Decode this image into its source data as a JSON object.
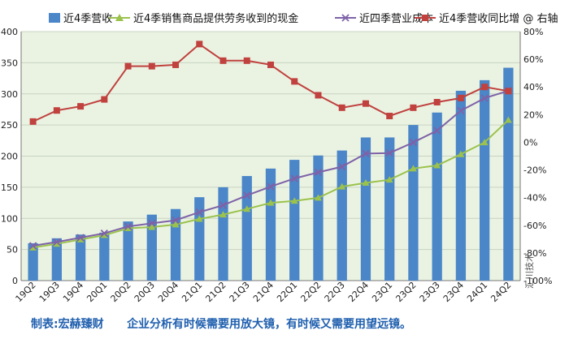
{
  "chart_data": {
    "type": "bar",
    "categories": [
      "19Q2",
      "19Q3",
      "19Q4",
      "20Q1",
      "20Q2",
      "20Q3",
      "20Q4",
      "21Q1",
      "21Q2",
      "21Q3",
      "21Q4",
      "22Q1",
      "22Q2",
      "22Q3",
      "22Q4",
      "23Q1",
      "23Q2",
      "23Q3",
      "23Q4",
      "24Q1",
      "24Q2"
    ],
    "series": [
      {
        "name": "近4季营收",
        "kind": "bar",
        "axis": "left",
        "color": "#4A86C8",
        "values": [
          60,
          68,
          74,
          77,
          95,
          106,
          115,
          134,
          150,
          168,
          180,
          194,
          201,
          209,
          230,
          230,
          250,
          270,
          305,
          322,
          342
        ]
      },
      {
        "name": "近4季销售商品提供劳务收到的现金",
        "kind": "line",
        "axis": "left",
        "color": "#9BC24D",
        "marker": "triangle",
        "values": [
          53,
          59,
          66,
          73,
          84,
          86,
          90,
          99,
          106,
          115,
          125,
          128,
          133,
          151,
          157,
          162,
          180,
          185,
          203,
          222,
          258
        ]
      },
      {
        "name": "近四季营业成本",
        "kind": "line",
        "axis": "left",
        "color": "#7E62A8",
        "marker": "x",
        "values": [
          56,
          62,
          69,
          76,
          87,
          92,
          97,
          110,
          121,
          137,
          151,
          164,
          174,
          183,
          204,
          205,
          222,
          241,
          273,
          293,
          305
        ]
      },
      {
        "name": "近4季营收同比增 @ 右轴",
        "kind": "line",
        "axis": "right",
        "color": "#C0413E",
        "marker": "square",
        "values": [
          15,
          23,
          26,
          31,
          55,
          55,
          56,
          71,
          59,
          59,
          56,
          44,
          34,
          25,
          28,
          19,
          25,
          29,
          32,
          40,
          37
        ]
      }
    ],
    "ylim": [
      0,
      400
    ],
    "yticks": [
      0,
      50,
      100,
      150,
      200,
      250,
      300,
      350,
      400
    ],
    "y2lim": [
      -100,
      80
    ],
    "y2ticks": [
      80,
      60,
      40,
      20,
      0,
      -20,
      -40,
      -60,
      -80,
      -100
    ],
    "y2_format": "percent",
    "grid": true,
    "legend": "top",
    "background": "#EAF3E2"
  },
  "footer": {
    "credit": "制表:宏赫臻财",
    "slogan": "企业分析有时候需要用放大镜，有时候又需要用望远镜。"
  },
  "watermark": "汇川技术"
}
